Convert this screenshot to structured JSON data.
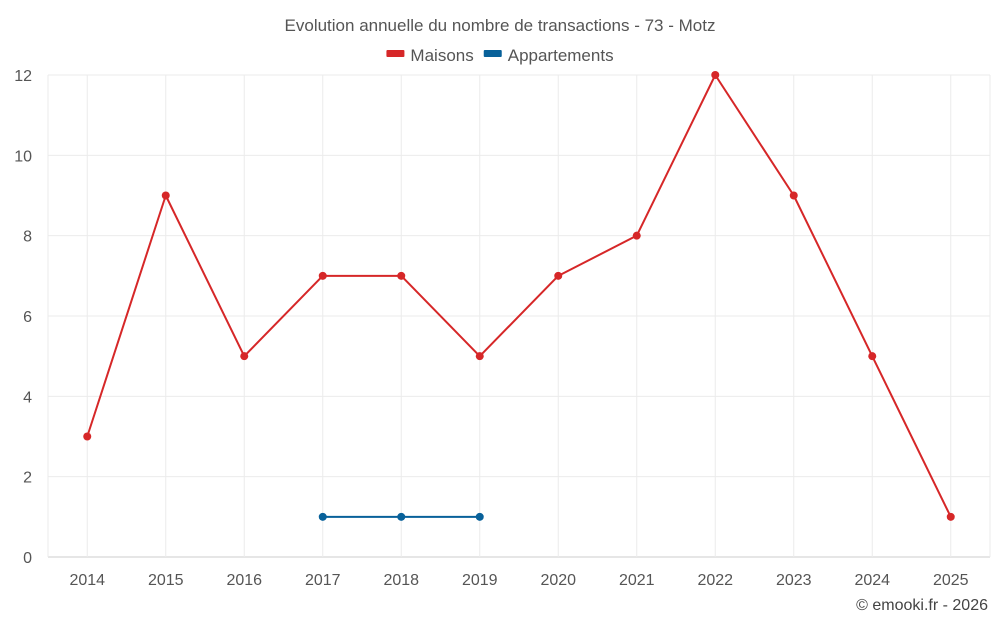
{
  "chart_data": {
    "type": "line",
    "title": "Evolution annuelle du nombre de transactions - 73 - Motz",
    "categories": [
      "2014",
      "2015",
      "2016",
      "2017",
      "2018",
      "2019",
      "2020",
      "2021",
      "2022",
      "2023",
      "2024",
      "2025"
    ],
    "series": [
      {
        "name": "Maisons",
        "color": "#d62728",
        "values": [
          3,
          9,
          5,
          7,
          7,
          5,
          7,
          8,
          12,
          9,
          5,
          1
        ]
      },
      {
        "name": "Appartements",
        "color": "#08619a",
        "values": [
          null,
          null,
          null,
          1,
          1,
          1,
          null,
          null,
          null,
          null,
          null,
          null
        ]
      }
    ],
    "xlabel": "",
    "ylabel": "",
    "ylim": [
      0,
      12
    ],
    "yticks": [
      "0",
      "2",
      "4",
      "6",
      "8",
      "10",
      "12"
    ],
    "grid": true,
    "legend_position": "top-center"
  },
  "credit": "© emooki.fr - 2026"
}
